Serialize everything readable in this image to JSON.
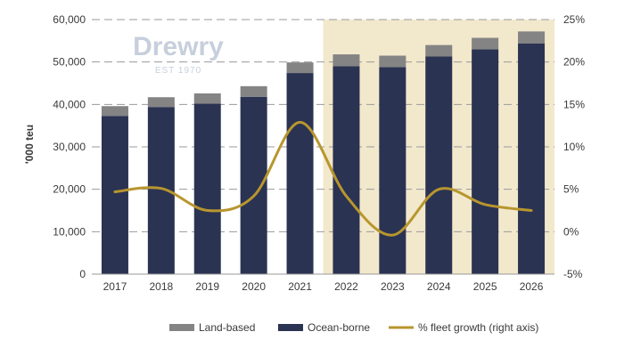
{
  "chart_data": {
    "type": "bar",
    "categories": [
      "2017",
      "2018",
      "2019",
      "2020",
      "2021",
      "2022",
      "2023",
      "2024",
      "2025",
      "2026"
    ],
    "series": [
      {
        "name": "Ocean-borne",
        "type": "bar",
        "stack": "total",
        "axis": "left",
        "color": "#2b3352",
        "values": [
          37300,
          39400,
          40200,
          41800,
          47400,
          49000,
          48800,
          51300,
          53000,
          54400
        ]
      },
      {
        "name": "Land-based",
        "type": "bar",
        "stack": "total",
        "axis": "left",
        "color": "#848484",
        "values": [
          2300,
          2300,
          2400,
          2500,
          2500,
          2800,
          2700,
          2700,
          2700,
          2800
        ]
      },
      {
        "name": "% fleet growth (right axis)",
        "type": "line",
        "axis": "right",
        "color": "#b8962e",
        "values": [
          4.7,
          5.1,
          2.5,
          4.2,
          12.9,
          4.2,
          -0.4,
          5.0,
          3.2,
          2.5
        ]
      }
    ],
    "ylabel": "'000 teu",
    "ylim": [
      0,
      60000
    ],
    "yticks": [
      "0",
      "10,000",
      "20,000",
      "30,000",
      "40,000",
      "50,000",
      "60,000"
    ],
    "y2lim": [
      -5,
      25
    ],
    "y2ticks": [
      "-5%",
      "0%",
      "5%",
      "10%",
      "15%",
      "20%",
      "25%"
    ],
    "forecast_shading": {
      "from": "2022",
      "to": "2026",
      "color": "#f2e8cc"
    },
    "grid": "horizontal dashed",
    "legend": {
      "placement": "bottom",
      "items": [
        "Land-based",
        "Ocean-borne",
        "% fleet growth (right axis)"
      ]
    },
    "watermark": {
      "word": "Drewry",
      "sub": "EST 1970"
    }
  }
}
